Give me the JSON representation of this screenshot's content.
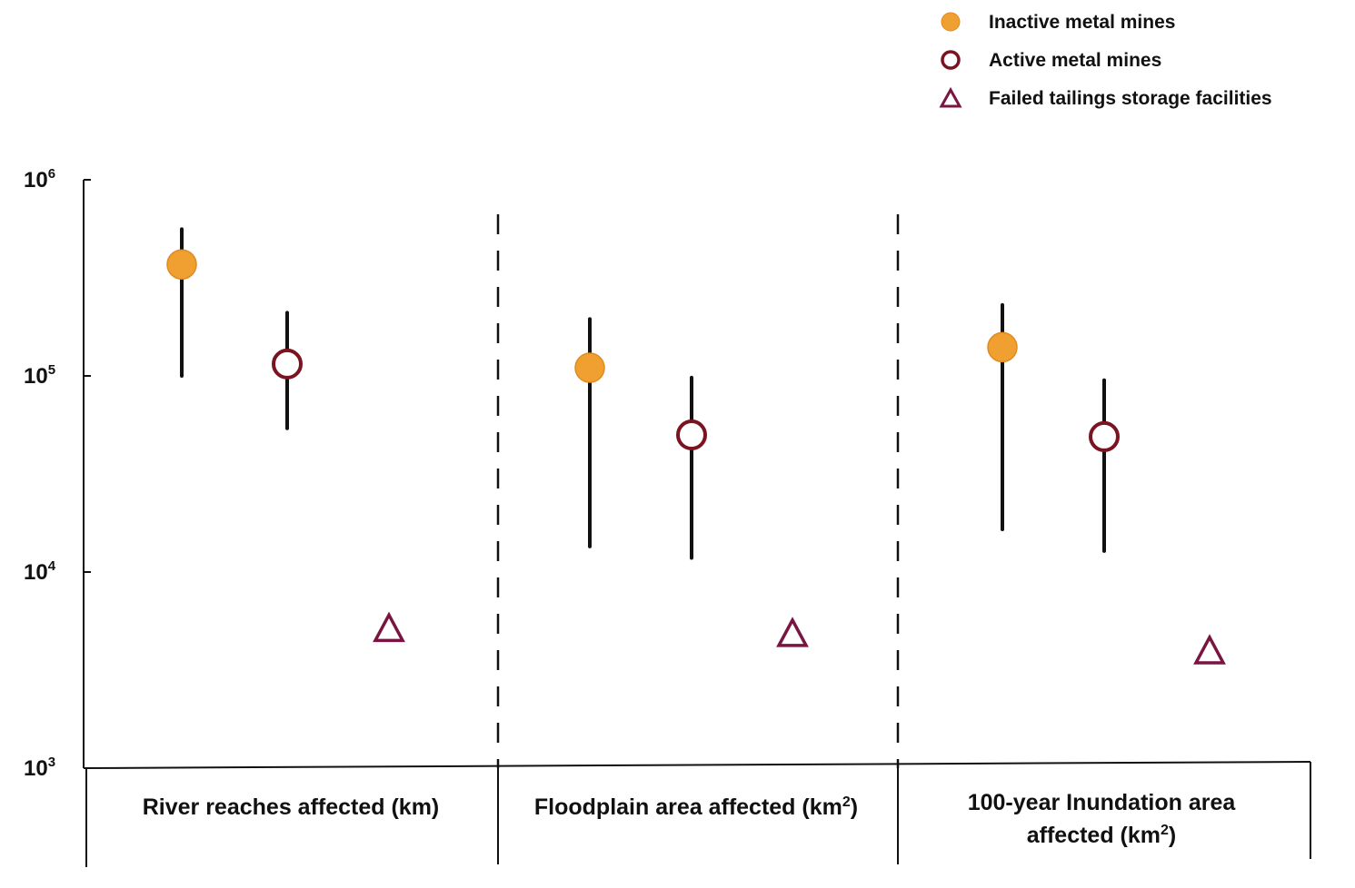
{
  "chart_data": {
    "type": "scatter",
    "scale": "log",
    "ylim": [
      1000,
      1000000
    ],
    "y_ticks": [
      {
        "base": "10",
        "exp": "6",
        "value": 1000000
      },
      {
        "base": "10",
        "exp": "5",
        "value": 100000
      },
      {
        "base": "10",
        "exp": "4",
        "value": 10000
      },
      {
        "base": "10",
        "exp": "3",
        "value": 1000
      }
    ],
    "categories": [
      {
        "lines": [
          "River reaches affected (km)"
        ],
        "sup": ""
      },
      {
        "lines": [
          "Floodplain area affected (km"
        ],
        "sup": "2",
        "suffix": ")"
      },
      {
        "lines": [
          "100-year Inundation area",
          "affected (km"
        ],
        "sup": "2",
        "suffix": ")"
      }
    ],
    "series": [
      {
        "name": "Inactive metal mines",
        "marker": "filled-circle",
        "color": "#f0a030",
        "values": [
          370000,
          110000,
          140000
        ],
        "error_low": [
          100000,
          13500,
          16500
        ],
        "error_high": [
          560000,
          195000,
          230000
        ]
      },
      {
        "name": "Active metal mines",
        "marker": "open-circle",
        "color": "#7a1420",
        "values": [
          115000,
          50000,
          49000
        ],
        "error_low": [
          54000,
          11800,
          12800
        ],
        "error_high": [
          210000,
          98000,
          95000
        ]
      },
      {
        "name": "Failed tailings storage facilities",
        "marker": "open-triangle",
        "color": "#7a1440",
        "values": [
          5200,
          4900,
          4000
        ]
      }
    ],
    "grid": false,
    "legend_position": "top-right"
  }
}
